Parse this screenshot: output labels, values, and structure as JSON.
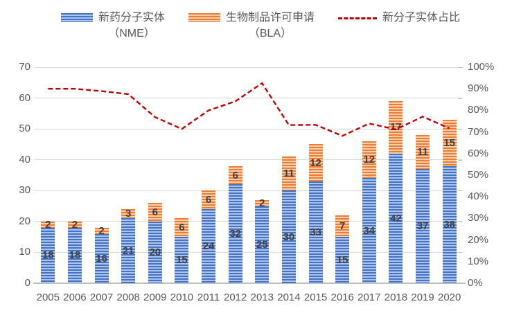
{
  "legend": {
    "items": [
      {
        "line1": "新药分子实体",
        "line2": "（NME）",
        "swatch": "blue-striped-bar",
        "color": "#4472C4"
      },
      {
        "line1": "生物制品许可申请",
        "line2": "（BLA）",
        "swatch": "orange-striped-bar",
        "color": "#ED7D31"
      },
      {
        "line1": "新分子实体占比",
        "line2": "",
        "swatch": "red-dashed-line",
        "color": "#C00000"
      }
    ]
  },
  "chart_data": {
    "type": "bar",
    "subtype": "stacked-bars-with-line-overlay",
    "categories": [
      "2005",
      "2006",
      "2007",
      "2008",
      "2009",
      "2010",
      "2011",
      "2012",
      "2013",
      "2014",
      "2015",
      "2016",
      "2017",
      "2018",
      "2019",
      "2020"
    ],
    "series": [
      {
        "name": "新药分子实体（NME）",
        "type": "bar",
        "stack": 1,
        "color": "#4472C4",
        "values": [
          18,
          18,
          16,
          21,
          20,
          15,
          24,
          32,
          25,
          30,
          33,
          15,
          34,
          42,
          37,
          38
        ]
      },
      {
        "name": "生物制品许可申请（BLA）",
        "type": "bar",
        "stack": 2,
        "color": "#ED7D31",
        "values": [
          2,
          2,
          2,
          3,
          6,
          6,
          6,
          6,
          2,
          11,
          12,
          7,
          12,
          17,
          11,
          15
        ]
      },
      {
        "name": "新分子实体占比",
        "type": "line",
        "axis": "right",
        "color": "#C00000",
        "dash": true,
        "values_pct": [
          90.0,
          90.0,
          88.9,
          87.5,
          76.9,
          71.4,
          80.0,
          84.2,
          92.6,
          73.2,
          73.3,
          68.2,
          73.9,
          71.2,
          77.1,
          71.7
        ]
      }
    ],
    "data_labels_shown": true,
    "y_left": {
      "min": 0,
      "max": 70,
      "ticks": [
        {
          "value": 0,
          "label": "0"
        },
        {
          "value": 10,
          "label": "10"
        },
        {
          "value": 20,
          "label": "20"
        },
        {
          "value": 30,
          "label": "30"
        },
        {
          "value": 40,
          "label": "40"
        },
        {
          "value": 50,
          "label": "50"
        },
        {
          "value": 60,
          "label": "60"
        },
        {
          "value": 70,
          "label": "70"
        }
      ]
    },
    "y_right": {
      "min": 0,
      "max": 100,
      "ticks": [
        {
          "value": 0,
          "label": "0%"
        },
        {
          "value": 10,
          "label": "10%"
        },
        {
          "value": 20,
          "label": "20%"
        },
        {
          "value": 30,
          "label": "30%"
        },
        {
          "value": 40,
          "label": "40%"
        },
        {
          "value": 50,
          "label": "50%"
        },
        {
          "value": 60,
          "label": "60%"
        },
        {
          "value": 70,
          "label": "70%"
        },
        {
          "value": 80,
          "label": "80%"
        },
        {
          "value": 90,
          "label": "90%"
        },
        {
          "value": 100,
          "label": "100%"
        }
      ]
    },
    "grid": true,
    "legend_position": "top",
    "colors": {
      "grid": "#d9d9d9",
      "axis": "#bfbfbf",
      "text": "#595959",
      "data_label": "#3f3f3f"
    }
  }
}
